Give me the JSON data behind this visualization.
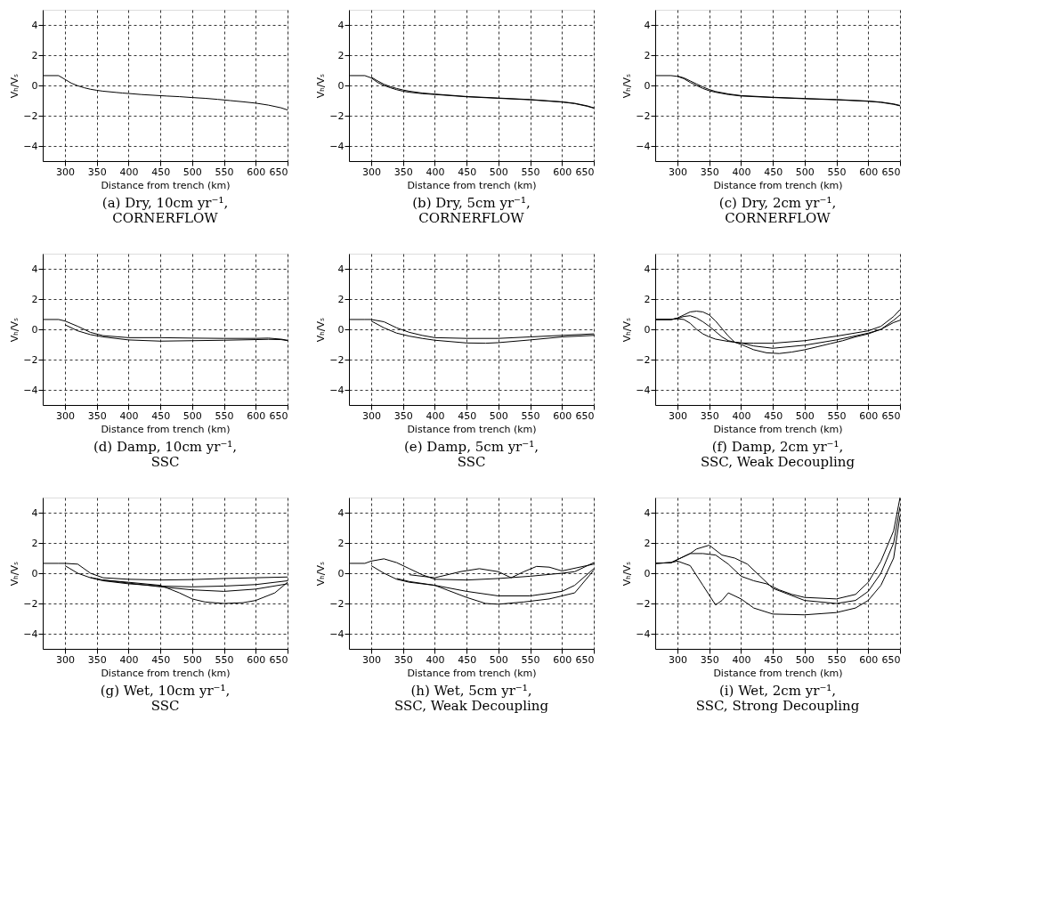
{
  "chart_data": [
    {
      "type": "line",
      "title": "(a) Dry, 10cm yr⁻¹,",
      "subtitle": "CORNERFLOW",
      "xlabel": "Distance from trench (km)",
      "ylabel": "Vₕ/Vₛ",
      "xlim": [
        265,
        650
      ],
      "ylim": [
        -5,
        5
      ],
      "xticks": [
        300,
        350,
        400,
        450,
        500,
        550,
        600,
        650
      ],
      "yticks": [
        -4,
        -2,
        0,
        2,
        4
      ],
      "grid": true,
      "legend": false,
      "marker": "none",
      "line_style": "solid",
      "series": [
        {
          "color": "#000000",
          "x": [
            265,
            290,
            300,
            310,
            320,
            330,
            340,
            350,
            360,
            370,
            380,
            390,
            400,
            420,
            440,
            460,
            480,
            500,
            520,
            540,
            560,
            580,
            600,
            620,
            640,
            650
          ],
          "values": [
            0.65,
            0.65,
            0.4,
            0.15,
            -0.02,
            -0.15,
            -0.25,
            -0.32,
            -0.38,
            -0.42,
            -0.46,
            -0.5,
            -0.53,
            -0.6,
            -0.65,
            -0.7,
            -0.74,
            -0.8,
            -0.85,
            -0.92,
            -1.0,
            -1.08,
            -1.17,
            -1.3,
            -1.48,
            -1.62
          ]
        }
      ]
    },
    {
      "type": "line",
      "title": "(b) Dry, 5cm yr⁻¹,",
      "subtitle": "CORNERFLOW",
      "xlabel": "Distance from trench (km)",
      "ylabel": "Vₕ/Vₛ",
      "xlim": [
        265,
        650
      ],
      "ylim": [
        -5,
        5
      ],
      "xticks": [
        300,
        350,
        400,
        450,
        500,
        550,
        600,
        650
      ],
      "yticks": [
        -4,
        -2,
        0,
        2,
        4
      ],
      "grid": true,
      "legend": false,
      "marker": "none",
      "line_style": "solid",
      "series": [
        {
          "color": "#000000",
          "x": [
            265,
            290,
            300,
            310,
            320,
            330,
            340,
            350,
            360,
            380,
            400,
            450,
            500,
            550,
            600,
            620,
            640,
            650
          ],
          "values": [
            0.65,
            0.65,
            0.5,
            0.2,
            0.0,
            -0.15,
            -0.28,
            -0.38,
            -0.45,
            -0.54,
            -0.6,
            -0.75,
            -0.85,
            -0.95,
            -1.1,
            -1.2,
            -1.38,
            -1.5
          ]
        },
        {
          "color": "#000000",
          "x": [
            300,
            310,
            320,
            330,
            340,
            350,
            360,
            380,
            400,
            450,
            500,
            550,
            600,
            620,
            640,
            650
          ],
          "values": [
            0.55,
            0.3,
            0.08,
            -0.08,
            -0.2,
            -0.3,
            -0.38,
            -0.5,
            -0.57,
            -0.73,
            -0.83,
            -0.93,
            -1.08,
            -1.18,
            -1.35,
            -1.48
          ]
        }
      ]
    },
    {
      "type": "line",
      "title": "(c) Dry, 2cm yr⁻¹,",
      "subtitle": "CORNERFLOW",
      "xlabel": "Distance from trench (km)",
      "ylabel": "Vₕ/Vₛ",
      "xlim": [
        265,
        650
      ],
      "ylim": [
        -5,
        5
      ],
      "xticks": [
        300,
        350,
        400,
        450,
        500,
        550,
        600,
        650
      ],
      "yticks": [
        -4,
        -2,
        0,
        2,
        4
      ],
      "grid": true,
      "legend": false,
      "marker": "none",
      "line_style": "solid",
      "series": [
        {
          "color": "#000000",
          "x": [
            265,
            290,
            300,
            310,
            320,
            330,
            340,
            350,
            360,
            380,
            400,
            450,
            500,
            550,
            600,
            620,
            640,
            650
          ],
          "values": [
            0.65,
            0.65,
            0.6,
            0.45,
            0.2,
            0.0,
            -0.2,
            -0.35,
            -0.45,
            -0.6,
            -0.7,
            -0.8,
            -0.88,
            -0.95,
            -1.05,
            -1.12,
            -1.25,
            -1.35
          ]
        },
        {
          "color": "#000000",
          "x": [
            300,
            310,
            320,
            330,
            340,
            350,
            360,
            380,
            400,
            450,
            500,
            550,
            600,
            620,
            640,
            650
          ],
          "values": [
            0.62,
            0.5,
            0.3,
            0.1,
            -0.1,
            -0.27,
            -0.4,
            -0.56,
            -0.67,
            -0.78,
            -0.86,
            -0.93,
            -1.03,
            -1.1,
            -1.22,
            -1.32
          ]
        }
      ]
    },
    {
      "type": "line",
      "title": "(d) Damp, 10cm yr⁻¹,",
      "subtitle": "SSC",
      "xlabel": "Distance from trench (km)",
      "ylabel": "Vₕ/Vₛ",
      "xlim": [
        265,
        650
      ],
      "ylim": [
        -5,
        5
      ],
      "xticks": [
        300,
        350,
        400,
        450,
        500,
        550,
        600,
        650
      ],
      "yticks": [
        -4,
        -2,
        0,
        2,
        4
      ],
      "grid": true,
      "legend": false,
      "marker": "none",
      "line_style": "solid",
      "series": [
        {
          "color": "#000000",
          "x": [
            265,
            290,
            300,
            320,
            340,
            360,
            400,
            450,
            500,
            550,
            600,
            620,
            640,
            650
          ],
          "values": [
            0.65,
            0.65,
            0.55,
            0.2,
            -0.2,
            -0.42,
            -0.55,
            -0.55,
            -0.58,
            -0.6,
            -0.6,
            -0.58,
            -0.65,
            -0.72
          ]
        },
        {
          "color": "#000000",
          "x": [
            300,
            320,
            340,
            360,
            400,
            450,
            500,
            550,
            600,
            620,
            640,
            650
          ],
          "values": [
            0.3,
            -0.1,
            -0.35,
            -0.5,
            -0.7,
            -0.78,
            -0.75,
            -0.72,
            -0.68,
            -0.66,
            -0.68,
            -0.75
          ]
        }
      ]
    },
    {
      "type": "line",
      "title": "(e) Damp, 5cm yr⁻¹,",
      "subtitle": "SSC",
      "xlabel": "Distance from trench (km)",
      "ylabel": "Vₕ/Vₛ",
      "xlim": [
        265,
        650
      ],
      "ylim": [
        -5,
        5
      ],
      "xticks": [
        300,
        350,
        400,
        450,
        500,
        550,
        600,
        650
      ],
      "yticks": [
        -4,
        -2,
        0,
        2,
        4
      ],
      "grid": true,
      "legend": false,
      "marker": "none",
      "line_style": "solid",
      "series": [
        {
          "color": "#000000",
          "x": [
            265,
            290,
            300,
            320,
            340,
            360,
            380,
            400,
            450,
            500,
            550,
            600,
            650
          ],
          "values": [
            0.65,
            0.65,
            0.65,
            0.5,
            0.1,
            -0.2,
            -0.4,
            -0.55,
            -0.6,
            -0.6,
            -0.5,
            -0.4,
            -0.3
          ]
        },
        {
          "color": "#000000",
          "x": [
            300,
            320,
            340,
            360,
            380,
            400,
            450,
            480,
            500,
            550,
            600,
            650
          ],
          "values": [
            0.55,
            0.1,
            -0.25,
            -0.45,
            -0.6,
            -0.72,
            -0.9,
            -0.92,
            -0.88,
            -0.7,
            -0.5,
            -0.4
          ]
        }
      ]
    },
    {
      "type": "line",
      "title": "(f) Damp, 2cm yr⁻¹,",
      "subtitle": "SSC, Weak Decoupling",
      "xlabel": "Distance from trench (km)",
      "ylabel": "Vₕ/Vₛ",
      "xlim": [
        265,
        650
      ],
      "ylim": [
        -5,
        5
      ],
      "xticks": [
        300,
        350,
        400,
        450,
        500,
        550,
        600,
        650
      ],
      "yticks": [
        -4,
        -2,
        0,
        2,
        4
      ],
      "grid": true,
      "legend": false,
      "marker": "none",
      "line_style": "solid",
      "series": [
        {
          "color": "#000000",
          "x": [
            265,
            290,
            300,
            310,
            320,
            330,
            340,
            350,
            360,
            370,
            380,
            390,
            400,
            420,
            440,
            460,
            480,
            500,
            520,
            540,
            560,
            580,
            600,
            620,
            640,
            650
          ],
          "values": [
            0.65,
            0.65,
            0.75,
            0.95,
            1.15,
            1.2,
            1.15,
            0.95,
            0.55,
            0.05,
            -0.45,
            -0.85,
            -1.0,
            -1.35,
            -1.55,
            -1.6,
            -1.5,
            -1.35,
            -1.15,
            -0.95,
            -0.75,
            -0.5,
            -0.3,
            0.0,
            0.45,
            0.6
          ]
        },
        {
          "color": "#000000",
          "x": [
            265,
            290,
            300,
            310,
            320,
            330,
            340,
            350,
            360,
            370,
            380,
            390,
            400,
            420,
            450,
            500,
            550,
            600,
            620,
            640,
            650
          ],
          "values": [
            0.65,
            0.65,
            0.72,
            0.85,
            0.9,
            0.75,
            0.5,
            0.2,
            -0.15,
            -0.5,
            -0.75,
            -0.85,
            -0.9,
            -1.1,
            -1.25,
            -1.05,
            -0.7,
            -0.25,
            0.0,
            0.6,
            0.95
          ]
        },
        {
          "color": "#000000",
          "x": [
            265,
            290,
            300,
            310,
            320,
            330,
            340,
            350,
            360,
            380,
            400,
            420,
            450,
            500,
            550,
            600,
            620,
            640,
            650
          ],
          "values": [
            0.65,
            0.65,
            0.7,
            0.65,
            0.4,
            0.0,
            -0.3,
            -0.5,
            -0.65,
            -0.8,
            -0.9,
            -0.92,
            -0.92,
            -0.75,
            -0.45,
            -0.1,
            0.2,
            0.85,
            1.3
          ]
        }
      ]
    },
    {
      "type": "line",
      "title": "(g) Wet, 10cm yr⁻¹,",
      "subtitle": "SSC",
      "xlabel": "Distance from trench (km)",
      "ylabel": "Vₕ/Vₛ",
      "xlim": [
        265,
        650
      ],
      "ylim": [
        -5,
        5
      ],
      "xticks": [
        300,
        350,
        400,
        450,
        500,
        550,
        600,
        650
      ],
      "yticks": [
        -4,
        -2,
        0,
        2,
        4
      ],
      "grid": true,
      "legend": false,
      "marker": "none",
      "line_style": "solid",
      "series": [
        {
          "color": "#000000",
          "x": [
            265,
            290,
            300,
            320,
            340,
            360,
            400,
            450,
            500,
            550,
            600,
            650
          ],
          "values": [
            0.65,
            0.65,
            0.65,
            0.6,
            0.0,
            -0.3,
            -0.4,
            -0.45,
            -0.42,
            -0.35,
            -0.3,
            -0.25
          ]
        },
        {
          "color": "#000000",
          "x": [
            300,
            320,
            340,
            360,
            400,
            450,
            500,
            550,
            600,
            650
          ],
          "values": [
            0.5,
            0.0,
            -0.3,
            -0.5,
            -0.7,
            -0.85,
            -0.9,
            -0.85,
            -0.75,
            -0.5
          ]
        },
        {
          "color": "#000000",
          "x": [
            340,
            360,
            400,
            450,
            480,
            500,
            520,
            550,
            580,
            600,
            630,
            650
          ],
          "values": [
            -0.28,
            -0.45,
            -0.6,
            -0.8,
            -1.3,
            -1.7,
            -1.9,
            -2.0,
            -1.95,
            -1.8,
            -1.3,
            -0.6
          ]
        },
        {
          "color": "#000000",
          "x": [
            360,
            400,
            450,
            500,
            550,
            600,
            650
          ],
          "values": [
            -0.45,
            -0.65,
            -0.9,
            -1.1,
            -1.2,
            -1.05,
            -0.7
          ]
        }
      ]
    },
    {
      "type": "line",
      "title": "(h) Wet, 5cm yr⁻¹,",
      "subtitle": "SSC, Weak Decoupling",
      "xlabel": "Distance from trench (km)",
      "ylabel": "Vₕ/Vₛ",
      "xlim": [
        265,
        650
      ],
      "ylim": [
        -5,
        5
      ],
      "xticks": [
        300,
        350,
        400,
        450,
        500,
        550,
        600,
        650
      ],
      "yticks": [
        -4,
        -2,
        0,
        2,
        4
      ],
      "grid": true,
      "legend": false,
      "marker": "none",
      "line_style": "solid",
      "series": [
        {
          "color": "#000000",
          "x": [
            265,
            290,
            300,
            320,
            340,
            360,
            380,
            400,
            450,
            500,
            550,
            600,
            620,
            650
          ],
          "values": [
            0.65,
            0.65,
            0.8,
            0.95,
            0.7,
            0.3,
            -0.1,
            -0.4,
            -0.45,
            -0.35,
            -0.2,
            0.0,
            0.1,
            0.7
          ]
        },
        {
          "color": "#000000",
          "x": [
            300,
            320,
            340,
            360,
            400,
            450,
            500,
            550,
            600,
            620,
            650
          ],
          "values": [
            0.5,
            0.0,
            -0.4,
            -0.6,
            -0.8,
            -1.2,
            -1.5,
            -1.5,
            -1.2,
            -0.8,
            0.3
          ]
        },
        {
          "color": "#000000",
          "x": [
            340,
            360,
            400,
            450,
            480,
            500,
            540,
            580,
            620,
            650
          ],
          "values": [
            -0.35,
            -0.55,
            -0.8,
            -1.6,
            -2.0,
            -2.05,
            -1.9,
            -1.7,
            -1.3,
            0.2
          ]
        },
        {
          "color": "#000000",
          "x": [
            360,
            400,
            440,
            470,
            500,
            520,
            540,
            560,
            580,
            600,
            650
          ],
          "values": [
            -0.1,
            -0.3,
            0.1,
            0.3,
            0.1,
            -0.3,
            0.1,
            0.45,
            0.4,
            0.15,
            0.6
          ]
        }
      ]
    },
    {
      "type": "line",
      "title": "(i) Wet, 2cm yr⁻¹,",
      "subtitle": "SSC, Strong Decoupling",
      "xlabel": "Distance from trench (km)",
      "ylabel": "Vₕ/Vₛ",
      "xlim": [
        265,
        650
      ],
      "ylim": [
        -5,
        5
      ],
      "xticks": [
        300,
        350,
        400,
        450,
        500,
        550,
        600,
        650
      ],
      "yticks": [
        -4,
        -2,
        0,
        2,
        4
      ],
      "grid": true,
      "legend": false,
      "marker": "none",
      "line_style": "solid",
      "series": [
        {
          "color": "#000000",
          "x": [
            265,
            290,
            300,
            320,
            340,
            360,
            380,
            400,
            420,
            440,
            460,
            480,
            500,
            550,
            580,
            600,
            620,
            640,
            650
          ],
          "values": [
            0.65,
            0.7,
            0.9,
            1.3,
            1.3,
            1.2,
            0.6,
            -0.2,
            -0.5,
            -0.7,
            -1.1,
            -1.4,
            -1.6,
            -1.7,
            -1.4,
            -0.6,
            0.8,
            2.8,
            5.0
          ]
        },
        {
          "color": "#000000",
          "x": [
            265,
            290,
            300,
            320,
            340,
            360,
            370,
            380,
            400,
            420,
            450,
            500,
            550,
            580,
            600,
            620,
            640,
            650
          ],
          "values": [
            0.65,
            0.7,
            0.8,
            0.5,
            -0.8,
            -2.1,
            -1.8,
            -1.3,
            -1.7,
            -2.3,
            -2.7,
            -2.75,
            -2.6,
            -2.3,
            -1.8,
            -0.8,
            1.0,
            3.8
          ]
        },
        {
          "color": "#000000",
          "x": [
            265,
            290,
            300,
            320,
            330,
            350,
            370,
            390,
            410,
            430,
            450,
            500,
            550,
            580,
            600,
            620,
            640,
            650
          ],
          "values": [
            0.65,
            0.7,
            0.9,
            1.3,
            1.6,
            1.85,
            1.2,
            1.0,
            0.6,
            -0.2,
            -1.0,
            -1.8,
            -2.0,
            -1.8,
            -1.2,
            0.0,
            2.0,
            4.4
          ]
        }
      ]
    }
  ]
}
